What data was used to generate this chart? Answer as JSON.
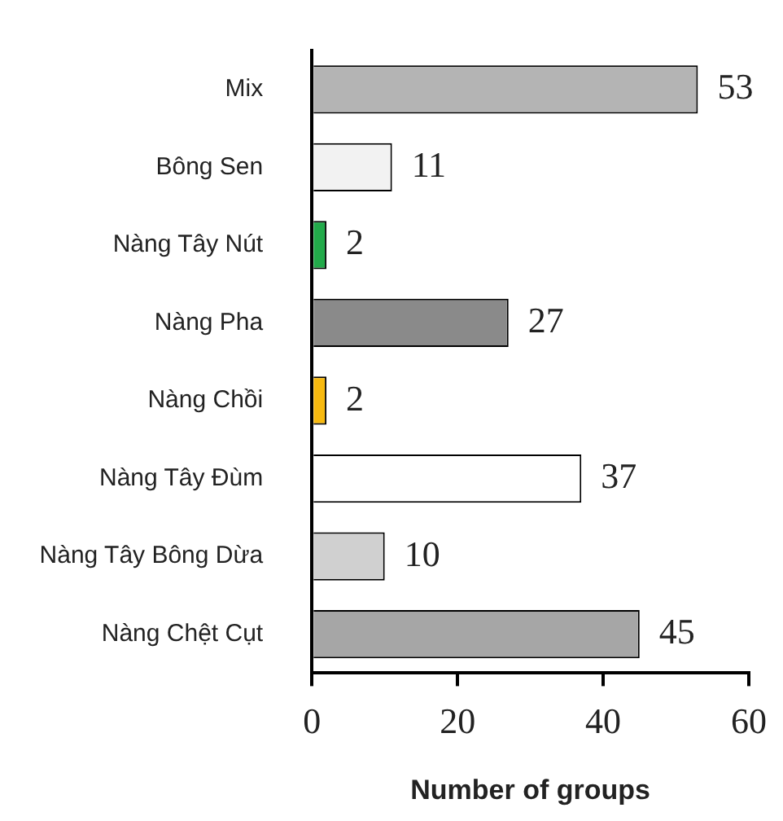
{
  "chart_data": {
    "type": "bar",
    "orientation": "horizontal",
    "xlabel": "Number of groups",
    "categories": [
      "Mix",
      "Bông Sen",
      "Nàng Tây Nút",
      "Nàng Pha",
      "Nàng Chồi",
      "Nàng Tây Đùm",
      "Nàng Tây Bông Dừa",
      "Nàng Chệt Cụt"
    ],
    "values": [
      53,
      11,
      2,
      27,
      2,
      37,
      10,
      45
    ],
    "colors": [
      "#b4b4b4",
      "#f2f2f2",
      "#22aa4a",
      "#8a8a8a",
      "#f7b90f",
      "#ffffff",
      "#d0d0d0",
      "#a6a6a6"
    ],
    "xlim": [
      0,
      60
    ],
    "xticks": [
      0,
      20,
      40,
      60
    ],
    "grid": false,
    "legend": false,
    "data_labels": true
  }
}
